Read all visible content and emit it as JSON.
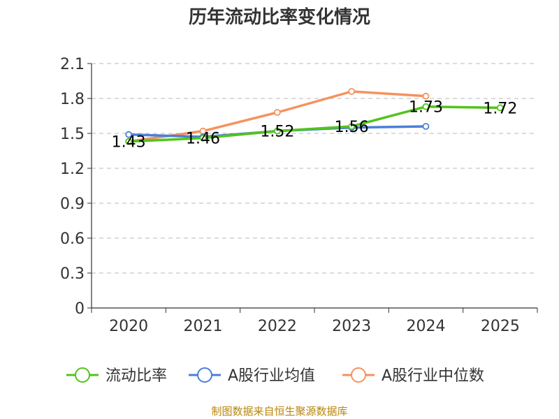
{
  "chart_data": {
    "type": "line",
    "title": "历年流动比率变化情况",
    "categories": [
      "2020",
      "2021",
      "2022",
      "2023",
      "2024",
      "2025"
    ],
    "ylim": [
      0,
      2.1
    ],
    "yticks": [
      "0",
      "0.3",
      "0.6",
      "0.9",
      "1.2",
      "1.5",
      "1.8",
      "2.1"
    ],
    "ytick_values": [
      0,
      0.3,
      0.6,
      0.9,
      1.2,
      1.5,
      1.8,
      2.1
    ],
    "grid": true,
    "legend_position": "bottom",
    "series": [
      {
        "name": "流动比率",
        "color": "#52c41a",
        "values": [
          1.43,
          1.46,
          1.52,
          1.56,
          1.73,
          1.72
        ],
        "labels": [
          "1.43",
          "1.46",
          "1.52",
          "1.56",
          "1.73",
          "1.72"
        ]
      },
      {
        "name": "A股行业均值",
        "color": "#4a7fd8",
        "values": [
          1.49,
          1.47,
          1.52,
          1.55,
          1.56,
          null
        ]
      },
      {
        "name": "A股行业中位数",
        "color": "#f5925e",
        "values": [
          1.43,
          1.52,
          1.68,
          1.86,
          1.82,
          null
        ]
      }
    ],
    "source": "制图数据来自恒生聚源数据库"
  }
}
